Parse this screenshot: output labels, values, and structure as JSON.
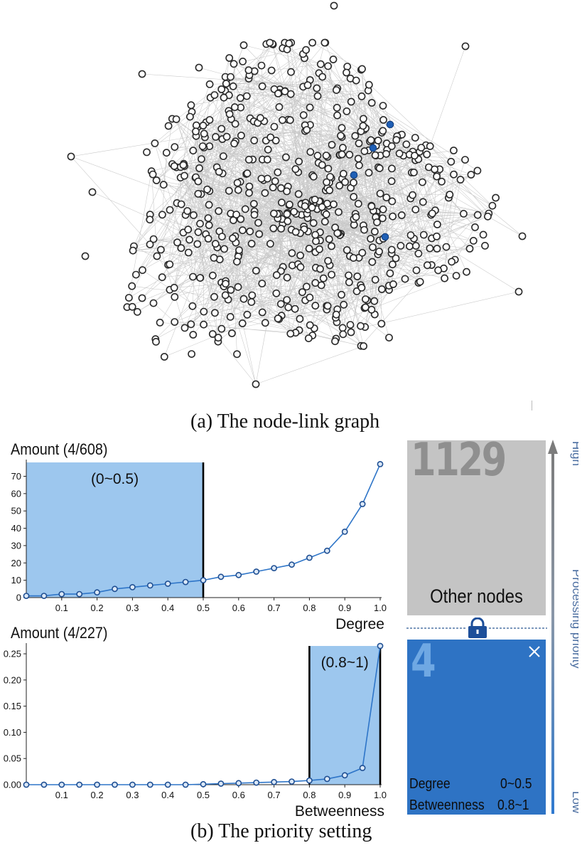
{
  "captions": {
    "a": "(a) The node-link graph",
    "b": "(b) The priority setting"
  },
  "graph": {
    "node_color": "#ffffff",
    "node_stroke": "#2a2a2a",
    "edge_color": "#9a9a9a",
    "highlight_color": "#1f5fb5"
  },
  "chart_data": [
    {
      "type": "line",
      "title": "Amount (4/608)",
      "xlabel": "Degree",
      "ylabel": "",
      "xlim": [
        0,
        1
      ],
      "ylim": [
        0,
        78
      ],
      "x_ticks": [
        "0.1",
        "0.2",
        "0.3",
        "0.4",
        "0.5",
        "0.6",
        "0.7",
        "0.8",
        "0.9",
        "1.0"
      ],
      "y_ticks": [
        "0",
        "10",
        "20",
        "30",
        "40",
        "50",
        "60",
        "70"
      ],
      "y_tick_values": [
        0,
        10,
        20,
        30,
        40,
        50,
        60,
        70
      ],
      "x": [
        0,
        0.05,
        0.1,
        0.15,
        0.2,
        0.25,
        0.3,
        0.35,
        0.4,
        0.45,
        0.5,
        0.55,
        0.6,
        0.65,
        0.7,
        0.75,
        0.8,
        0.85,
        0.9,
        0.95,
        1.0
      ],
      "values": [
        1,
        1,
        2,
        2,
        3,
        5,
        6,
        7,
        8,
        9,
        10,
        12,
        13,
        15,
        17,
        19,
        23,
        27,
        38,
        54,
        77
      ],
      "selection": {
        "from": 0,
        "to": 0.5,
        "label": "(0~0.5)"
      },
      "line_color": "#2e75c8",
      "selection_color": "#9dc7ee"
    },
    {
      "type": "line",
      "title": "Amount (4/227)",
      "xlabel": "Betweenness",
      "ylabel": "",
      "xlim": [
        0,
        1
      ],
      "ylim": [
        0,
        0.265
      ],
      "x_ticks": [
        "0.1",
        "0.2",
        "0.3",
        "0.4",
        "0.5",
        "0.6",
        "0.7",
        "0.8",
        "0.9",
        "1.0"
      ],
      "y_ticks": [
        "0.00",
        "0.05",
        "0.10",
        "0.15",
        "0.20",
        "0.25"
      ],
      "y_tick_values": [
        0,
        0.05,
        0.1,
        0.15,
        0.2,
        0.25
      ],
      "x": [
        0,
        0.05,
        0.1,
        0.15,
        0.2,
        0.25,
        0.3,
        0.35,
        0.4,
        0.45,
        0.5,
        0.55,
        0.6,
        0.65,
        0.7,
        0.75,
        0.8,
        0.85,
        0.9,
        0.95,
        1.0
      ],
      "values": [
        0,
        0,
        0,
        0,
        0,
        0,
        0,
        0,
        0,
        0,
        0.001,
        0.002,
        0.003,
        0.004,
        0.005,
        0.006,
        0.008,
        0.011,
        0.018,
        0.032,
        0.265
      ],
      "selection": {
        "from": 0.8,
        "to": 1.0,
        "label": "(0.8~1)"
      },
      "line_color": "#2e75c8",
      "selection_color": "#9dc7ee"
    }
  ],
  "priority_panel": {
    "other_nodes": {
      "count": "1129",
      "label": "Other nodes",
      "color": "#c4c4c4"
    },
    "selected": {
      "count": "4",
      "color": "#2e73c4",
      "filters": [
        {
          "name": "Degree",
          "range": "0~0.5"
        },
        {
          "name": "Betweenness",
          "range": "0.8~1"
        }
      ]
    },
    "axis": {
      "high": "High",
      "low": "Low",
      "title": "Processing priority"
    }
  }
}
